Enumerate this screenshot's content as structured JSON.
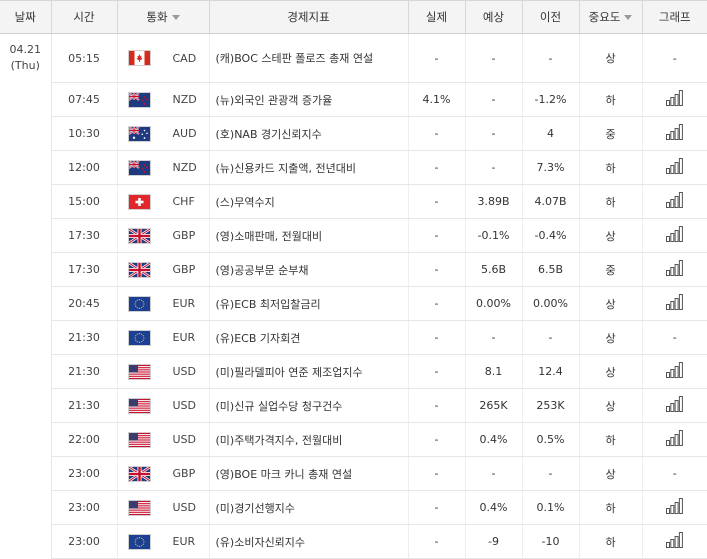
{
  "header": {
    "date": "날짜",
    "time": "시간",
    "currency": "통화",
    "indicator": "경제지표",
    "actual": "실제",
    "forecast": "예상",
    "previous": "이전",
    "importance": "중요도",
    "graph": "그래프"
  },
  "date_cell": {
    "date": "04.21",
    "weekday": "(Thu)"
  },
  "rows": [
    {
      "time": "05:15",
      "flag": "CA",
      "currency": "CAD",
      "indicator": "(캐)BOC 스테판 폴로즈 총재 연설",
      "actual": "-",
      "forecast": "-",
      "previous": "-",
      "importance": "상",
      "graph": "-",
      "has_graph": false
    },
    {
      "time": "07:45",
      "flag": "NZ",
      "currency": "NZD",
      "indicator": "(뉴)외국인 관광객 증가율",
      "actual": "4.1%",
      "forecast": "-",
      "previous": "-1.2%",
      "importance": "하",
      "graph": "",
      "has_graph": true
    },
    {
      "time": "10:30",
      "flag": "AU",
      "currency": "AUD",
      "indicator": "(호)NAB 경기신뢰지수",
      "actual": "-",
      "forecast": "-",
      "previous": "4",
      "importance": "중",
      "graph": "",
      "has_graph": true
    },
    {
      "time": "12:00",
      "flag": "NZ",
      "currency": "NZD",
      "indicator": "(뉴)신용카드 지출액, 전년대비",
      "actual": "-",
      "forecast": "-",
      "previous": "7.3%",
      "importance": "하",
      "graph": "",
      "has_graph": true
    },
    {
      "time": "15:00",
      "flag": "CH",
      "currency": "CHF",
      "indicator": "(스)무역수지",
      "actual": "-",
      "forecast": "3.89B",
      "previous": "4.07B",
      "importance": "하",
      "graph": "",
      "has_graph": true
    },
    {
      "time": "17:30",
      "flag": "GB",
      "currency": "GBP",
      "indicator": "(영)소매판매, 전월대비",
      "actual": "-",
      "forecast": "-0.1%",
      "previous": "-0.4%",
      "importance": "상",
      "graph": "",
      "has_graph": true
    },
    {
      "time": "17:30",
      "flag": "GB",
      "currency": "GBP",
      "indicator": "(영)공공부문 순부채",
      "actual": "-",
      "forecast": "5.6B",
      "previous": "6.5B",
      "importance": "중",
      "graph": "",
      "has_graph": true
    },
    {
      "time": "20:45",
      "flag": "EU",
      "currency": "EUR",
      "indicator": "(유)ECB 최저입찰금리",
      "actual": "-",
      "forecast": "0.00%",
      "previous": "0.00%",
      "importance": "상",
      "graph": "",
      "has_graph": true
    },
    {
      "time": "21:30",
      "flag": "EU",
      "currency": "EUR",
      "indicator": "(유)ECB 기자회견",
      "actual": "-",
      "forecast": "-",
      "previous": "-",
      "importance": "상",
      "graph": "-",
      "has_graph": false
    },
    {
      "time": "21:30",
      "flag": "US",
      "currency": "USD",
      "indicator": "(미)필라델피아 연준 제조업지수",
      "actual": "-",
      "forecast": "8.1",
      "previous": "12.4",
      "importance": "상",
      "graph": "",
      "has_graph": true
    },
    {
      "time": "21:30",
      "flag": "US",
      "currency": "USD",
      "indicator": "(미)신규 실업수당 청구건수",
      "actual": "-",
      "forecast": "265K",
      "previous": "253K",
      "importance": "상",
      "graph": "",
      "has_graph": true
    },
    {
      "time": "22:00",
      "flag": "US",
      "currency": "USD",
      "indicator": "(미)주택가격지수, 전월대비",
      "actual": "-",
      "forecast": "0.4%",
      "previous": "0.5%",
      "importance": "하",
      "graph": "",
      "has_graph": true
    },
    {
      "time": "23:00",
      "flag": "GB",
      "currency": "GBP",
      "indicator": "(영)BOE 마크 카니 총재 연설",
      "actual": "-",
      "forecast": "-",
      "previous": "-",
      "importance": "상",
      "graph": "-",
      "has_graph": false
    },
    {
      "time": "23:00",
      "flag": "US",
      "currency": "USD",
      "indicator": "(미)경기선행지수",
      "actual": "-",
      "forecast": "0.4%",
      "previous": "0.1%",
      "importance": "하",
      "graph": "",
      "has_graph": true
    },
    {
      "time": "23:00",
      "flag": "EU",
      "currency": "EUR",
      "indicator": "(유)소비자신뢰지수",
      "actual": "-",
      "forecast": "-9",
      "previous": "-10",
      "importance": "하",
      "graph": "",
      "has_graph": true
    }
  ]
}
